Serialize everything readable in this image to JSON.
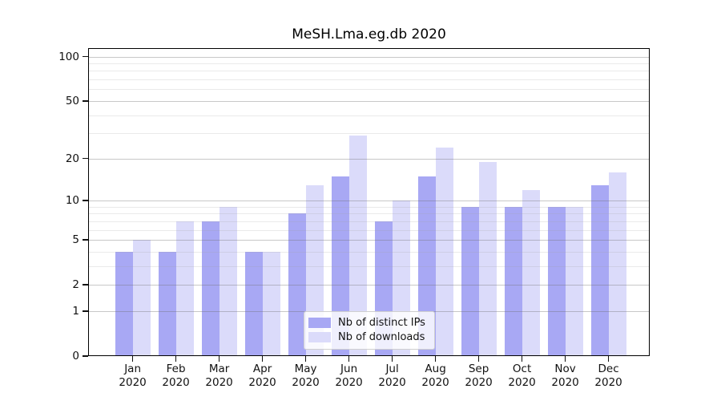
{
  "chart_data": {
    "type": "bar",
    "title": "MeSH.Lma.eg.db 2020",
    "x_categories": [
      "Jan",
      "Feb",
      "Mar",
      "Apr",
      "May",
      "Jun",
      "Jul",
      "Aug",
      "Sep",
      "Oct",
      "Nov",
      "Dec"
    ],
    "x_year": "2020",
    "series": [
      {
        "id": "distinct-ips",
        "name": "Nb of distinct IPs",
        "color": "#a8a8f4",
        "values": [
          4,
          4,
          7,
          4,
          8,
          15,
          7,
          15,
          9,
          9,
          9,
          13
        ]
      },
      {
        "id": "downloads",
        "name": "Nb of downloads",
        "color": "#dbdbfa",
        "values": [
          5,
          7,
          9,
          4,
          13,
          29,
          10,
          24,
          19,
          12,
          9,
          16
        ]
      }
    ],
    "y_axis": {
      "scale": "log10(1+x)",
      "major_ticks": [
        0,
        1,
        2,
        5,
        10,
        20,
        50,
        100
      ],
      "minor_gridlines": [
        3,
        4,
        6,
        7,
        8,
        9,
        30,
        40,
        60,
        70,
        80,
        90
      ],
      "ylim": [
        0,
        114
      ]
    },
    "legend": {
      "position": "bottom-center"
    },
    "grid": true,
    "colors": {
      "frame": "#000000",
      "major_grid": "#d0d0d0",
      "minor_grid": "#e7e7e7"
    }
  }
}
